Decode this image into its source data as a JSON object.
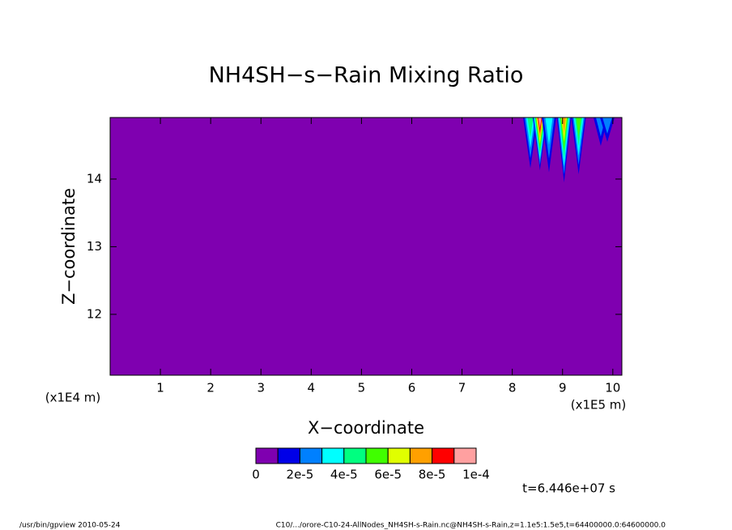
{
  "chart_data": {
    "type": "contour",
    "title": "NH4SH−s−Rain Mixing Ratio",
    "x_label": "X−coordinate",
    "y_label": "Z−coordinate",
    "x_unit": "(x1E5 m)",
    "y_unit": "(x1E4 m)",
    "xlim": [
      0,
      10.18
    ],
    "xticks": [
      1,
      2,
      3,
      4,
      5,
      6,
      7,
      8,
      9,
      10
    ],
    "ylim": [
      11.1,
      14.91
    ],
    "yticks": [
      12,
      13,
      14
    ],
    "levels": [
      0,
      1e-05,
      2e-05,
      3e-05,
      4e-05,
      5e-05,
      6e-05,
      7e-05,
      8e-05,
      9e-05,
      0.0001
    ],
    "colors": [
      "#7f00b0",
      "#0000e8",
      "#0080ff",
      "#00ffff",
      "#00ff80",
      "#40ff00",
      "#e0ff00",
      "#ffa000",
      "#ff0000",
      "#ffa0a0"
    ],
    "colorbar_ticks": [
      0,
      {
        "value": 2e-05,
        "label": "2e-5"
      },
      {
        "value": 4e-05,
        "label": "4e-5"
      },
      {
        "value": 6e-05,
        "label": "6e-5"
      },
      {
        "value": 8e-05,
        "label": "8e-5"
      },
      {
        "value": 0.0001,
        "label": "1e-4"
      }
    ],
    "spikes": [
      {
        "x": 8.36,
        "z": 14.16,
        "value": 4e-05
      },
      {
        "x": 8.55,
        "z": 14.13,
        "value": 9e-05
      },
      {
        "x": 8.73,
        "z": 14.1,
        "value": 3e-05
      },
      {
        "x": 9.03,
        "z": 13.95,
        "value": 7e-05
      },
      {
        "x": 9.32,
        "z": 14.07,
        "value": 5e-05
      },
      {
        "x": 9.76,
        "z": 14.49,
        "value": 2e-05
      },
      {
        "x": 9.89,
        "z": 14.55,
        "value": 2e-05
      }
    ],
    "time_label": "t=6.446e+07 s",
    "footer_left": "/usr/bin/gpview  2010-05-24",
    "footer_right": "C10/.../orore-C10-24-AllNodes_NH4SH-s-Rain.nc@NH4SH-s-Rain,z=1.1e5:1.5e5,t=64400000.0:64600000.0"
  }
}
